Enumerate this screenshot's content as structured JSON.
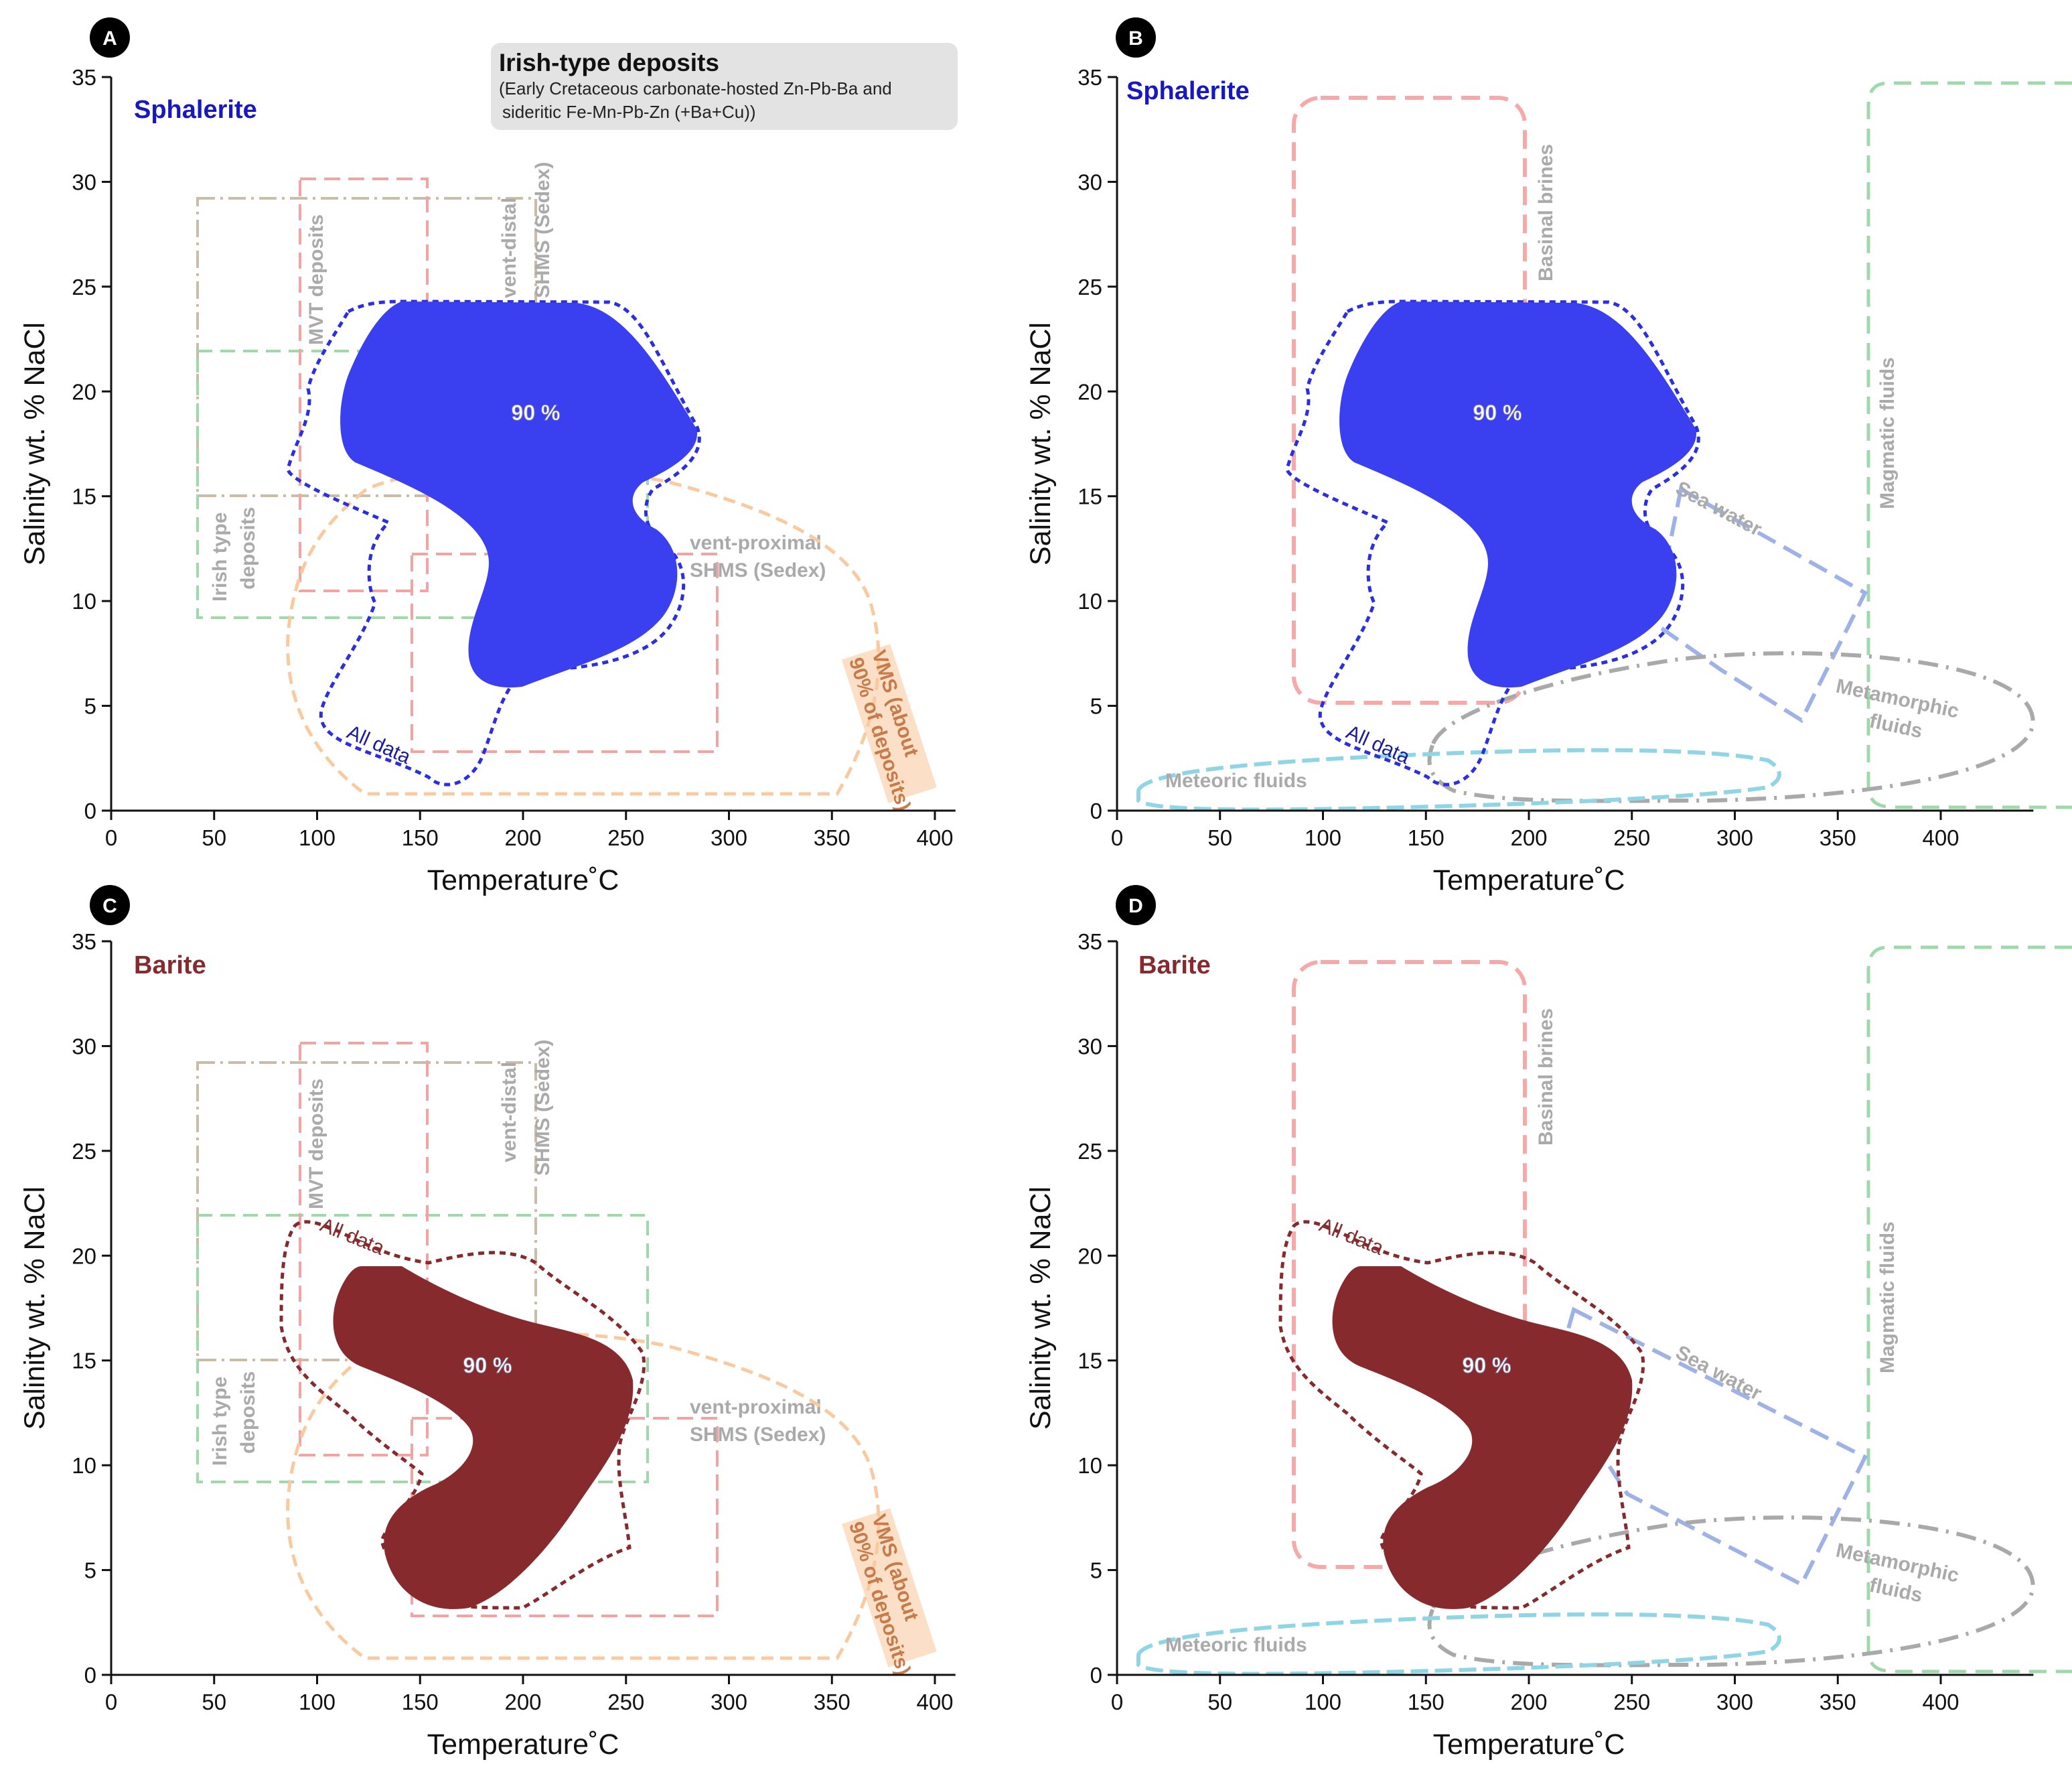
{
  "figure": {
    "legend_box": {
      "title": "Irish-type deposits",
      "line1": "(Early Cretaceous carbonate-hosted Zn-Pb-Ba and",
      "line2": "sideritic Fe-Mn-Pb-Zn (+Ba+Cu))"
    }
  },
  "colors": {
    "sphalerite": "#3a3ff0",
    "barite": "#862a2d",
    "mvt": "#f4a3a3",
    "irish": "#8fd49a",
    "sedex_distal": "#c9bca8",
    "sedex_proximal": "#f4a3a3",
    "vms": "#f9c9a0",
    "basinal": "#f7a8a8",
    "magmatic": "#9fd8aa",
    "sea_water": "#9fb2e8",
    "metamorphic": "#a9a9a9",
    "meteoric": "#8fd5e6"
  },
  "chart_data": [
    {
      "panel": "A",
      "type": "area",
      "mineral": "Sphalerite",
      "xlabel": "Temperature˚C",
      "ylabel": "Salinity wt. % NaCl",
      "xlim": [
        0,
        410
      ],
      "ylim": [
        0,
        35
      ],
      "xticks": [
        "0",
        "50",
        "100",
        "150",
        "200",
        "250",
        "300",
        "350",
        "400"
      ],
      "yticks": [
        "0",
        "5",
        "10",
        "15",
        "20",
        "25",
        "30",
        "35"
      ],
      "annotations": {
        "pct": "90 %",
        "all_data": "All data",
        "mvt": "MVT deposits",
        "irish": "Irish type deposits",
        "irish_line1": "Irish type",
        "irish_line2": "deposits",
        "distal_line1": "vent-distal",
        "distal_line2": "SHMS (Sedex)",
        "proximal_line1": "vent-proximal",
        "proximal_line2": "SHMS (Sedex)",
        "vms_line1": "VMS (about",
        "vms_line2": "90% of deposits)"
      },
      "regions": [
        {
          "name": "MVT deposits",
          "x": [
            93,
            152
          ],
          "y": [
            10.3,
            30.1
          ]
        },
        {
          "name": "Irish type deposits",
          "x": [
            42,
            258
          ],
          "y": [
            9.1,
            22
          ]
        },
        {
          "name": "vent-distal SHMS (Sedex)",
          "x": [
            42,
            205
          ],
          "y": [
            15,
            29.3
          ]
        },
        {
          "name": "vent-proximal SHMS (Sedex)",
          "x": [
            145,
            292
          ],
          "y": [
            2.7,
            12.1
          ]
        }
      ]
    },
    {
      "panel": "B",
      "type": "area",
      "mineral": "Sphalerite",
      "xlabel": "Temperature˚C",
      "ylabel": "Salinity wt. % NaCl",
      "xlim": [
        0,
        445
      ],
      "ylim": [
        0,
        35
      ],
      "xticks": [
        "0",
        "50",
        "100",
        "150",
        "200",
        "250",
        "300",
        "350",
        "400"
      ],
      "yticks": [
        "0",
        "5",
        "10",
        "15",
        "20",
        "25",
        "30",
        "35"
      ],
      "annotations": {
        "pct": "90 %",
        "all_data": "All data",
        "basinal": "Basinal brines",
        "magmatic": "Magmatic fluids",
        "sea_water": "Sea water",
        "metamorphic_line1": "Metamorphic",
        "metamorphic_line2": "fluids",
        "meteoric": "Meteoric fluids"
      },
      "regions": [
        {
          "name": "Basinal brines",
          "x": [
            86,
            197
          ],
          "y": [
            5.2,
            34
          ]
        },
        {
          "name": "Magmatic fluids",
          "x": [
            362,
            445
          ],
          "y": [
            0.2,
            34.7
          ]
        }
      ]
    },
    {
      "panel": "C",
      "type": "area",
      "mineral": "Barite",
      "xlabel": "Temperature˚C",
      "ylabel": "Salinity wt. % NaCl",
      "xlim": [
        0,
        410
      ],
      "ylim": [
        0,
        35
      ],
      "xticks": [
        "0",
        "50",
        "100",
        "150",
        "200",
        "250",
        "300",
        "350",
        "400"
      ],
      "yticks": [
        "0",
        "5",
        "10",
        "15",
        "20",
        "25",
        "30",
        "35"
      ],
      "annotations": {
        "pct": "90 %",
        "all_data": "All data",
        "mvt": "MVT deposits",
        "irish_line1": "Irish type",
        "irish_line2": "deposits",
        "distal_line1": "vent-distal",
        "distal_line2": "SHMS (Sedex)",
        "proximal_line1": "vent-proximal",
        "proximal_line2": "SHMS (Sedex)",
        "vms_line1": "VMS (about",
        "vms_line2": "90% of deposits)"
      }
    },
    {
      "panel": "D",
      "type": "area",
      "mineral": "Barite",
      "xlabel": "Temperature˚C",
      "ylabel": "Salinity wt. % NaCl",
      "xlim": [
        0,
        445
      ],
      "ylim": [
        0,
        35
      ],
      "xticks": [
        "0",
        "50",
        "100",
        "150",
        "200",
        "250",
        "300",
        "350",
        "400"
      ],
      "yticks": [
        "0",
        "5",
        "10",
        "15",
        "20",
        "25",
        "30",
        "35"
      ],
      "annotations": {
        "pct": "90 %",
        "all_data": "All data",
        "basinal": "Basinal brines",
        "magmatic": "Magmatic fluids",
        "sea_water": "Sea water",
        "metamorphic_line1": "Metamorphic",
        "metamorphic_line2": "fluids",
        "meteoric": "Meteoric fluids"
      }
    }
  ]
}
